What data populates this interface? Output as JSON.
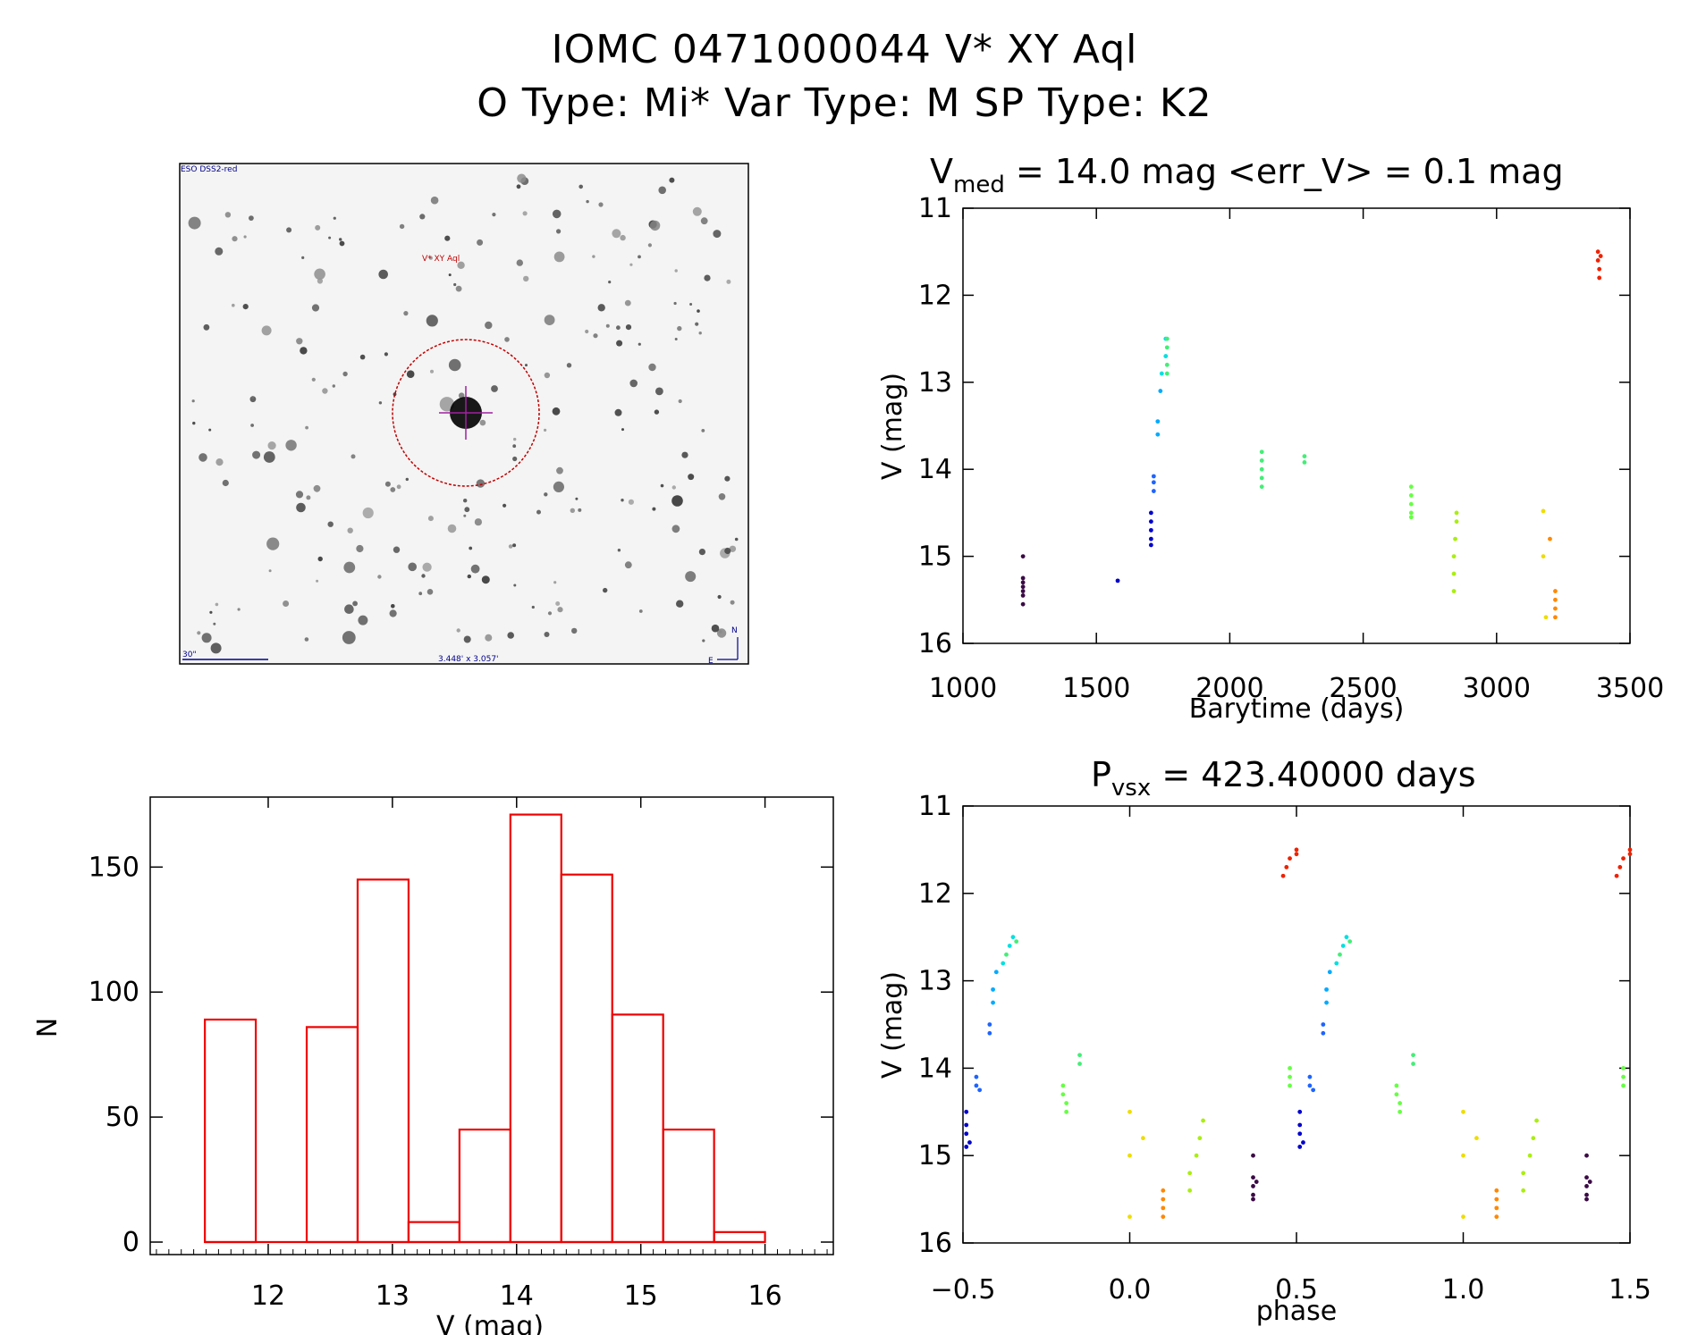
{
  "header": {
    "title_line1": "IOMC 0471000044    V* XY Aql",
    "title_line2": "O Type: Mi*  Var Type: M  SP Type: K2"
  },
  "finder_image": {
    "survey_label": "ESO DSS2-red",
    "target_label": "V* XY Aql",
    "scale_label": "30\"",
    "fov_label": "3.448' x 3.057'",
    "north_label": "N",
    "east_label": "E",
    "colors": {
      "circle": "#c00000",
      "labels": "#00008b",
      "target_label": "#c00000"
    }
  },
  "chart_data": [
    {
      "id": "lightcurve",
      "type": "scatter",
      "title_prefix": "V",
      "title_sub": "med",
      "title_rest": " = 14.0 mag <err_V> = 0.1 mag",
      "xlabel": "Barytime (days)",
      "ylabel": "V (mag)",
      "xlim": [
        1000,
        3500
      ],
      "ylim": [
        16,
        11
      ],
      "y_inverted": true,
      "xticks": [
        "1000",
        "1500",
        "2000",
        "2500",
        "3000",
        "3500"
      ],
      "yticks": [
        "11",
        "12",
        "13",
        "14",
        "15",
        "16"
      ],
      "series": [
        {
          "color": "#3b0a45",
          "points": [
            [
              1225,
              15.0
            ],
            [
              1225,
              15.25
            ],
            [
              1225,
              15.3
            ],
            [
              1225,
              15.35
            ],
            [
              1225,
              15.4
            ],
            [
              1225,
              15.45
            ],
            [
              1225,
              15.55
            ]
          ]
        },
        {
          "color": "#0000cc",
          "points": [
            [
              1580,
              15.28
            ],
            [
              1705,
              14.5
            ],
            [
              1705,
              14.6
            ],
            [
              1705,
              14.7
            ],
            [
              1705,
              14.8
            ],
            [
              1705,
              14.87
            ]
          ]
        },
        {
          "color": "#1e64ff",
          "points": [
            [
              1715,
              14.08
            ],
            [
              1715,
              14.15
            ],
            [
              1715,
              14.25
            ]
          ]
        },
        {
          "color": "#00aaff",
          "points": [
            [
              1730,
              13.45
            ],
            [
              1730,
              13.6
            ],
            [
              1740,
              13.1
            ]
          ]
        },
        {
          "color": "#00e0e0",
          "points": [
            [
              1745,
              12.9
            ],
            [
              1760,
              12.5
            ],
            [
              1760,
              12.7
            ]
          ]
        },
        {
          "color": "#44ee77",
          "points": [
            [
              1765,
              12.5
            ],
            [
              1765,
              12.6
            ],
            [
              1765,
              12.8
            ],
            [
              1765,
              12.9
            ],
            [
              2120,
              13.8
            ],
            [
              2120,
              13.9
            ],
            [
              2120,
              14.0
            ],
            [
              2120,
              14.1
            ],
            [
              2120,
              14.2
            ],
            [
              2280,
              13.85
            ],
            [
              2280,
              13.92
            ]
          ]
        },
        {
          "color": "#66ff44",
          "points": [
            [
              2680,
              14.2
            ],
            [
              2680,
              14.3
            ],
            [
              2680,
              14.4
            ],
            [
              2680,
              14.5
            ],
            [
              2680,
              14.55
            ]
          ]
        },
        {
          "color": "#aaee11",
          "points": [
            [
              2840,
              15.4
            ],
            [
              2840,
              15.2
            ],
            [
              2840,
              15.0
            ],
            [
              2845,
              14.8
            ],
            [
              2850,
              14.6
            ],
            [
              2850,
              14.5
            ]
          ]
        },
        {
          "color": "#eedd00",
          "points": [
            [
              3175,
              14.48
            ],
            [
              3175,
              15.0
            ],
            [
              3185,
              15.7
            ]
          ]
        },
        {
          "color": "#ff8800",
          "points": [
            [
              3200,
              14.8
            ],
            [
              3220,
              15.4
            ],
            [
              3220,
              15.5
            ],
            [
              3220,
              15.6
            ],
            [
              3220,
              15.7
            ]
          ]
        },
        {
          "color": "#ee2200",
          "points": [
            [
              3380,
              11.5
            ],
            [
              3380,
              11.6
            ],
            [
              3385,
              11.7
            ],
            [
              3385,
              11.8
            ],
            [
              3390,
              11.55
            ]
          ]
        }
      ]
    },
    {
      "id": "histogram",
      "type": "bar",
      "xlabel": "V (mag)",
      "ylabel": "N",
      "xlim": [
        11.05,
        16.55
      ],
      "ylim": [
        -5,
        178
      ],
      "xticks": [
        "12",
        "13",
        "14",
        "15",
        "16"
      ],
      "yticks": [
        "0",
        "50",
        "100",
        "150"
      ],
      "bin_edges": [
        11.49,
        11.9,
        12.31,
        12.72,
        13.13,
        13.54,
        13.95,
        14.36,
        14.77,
        15.18,
        15.59,
        16.0
      ],
      "values": [
        89,
        0,
        86,
        145,
        8,
        45,
        171,
        147,
        91,
        45,
        4
      ],
      "color": "#ee0000"
    },
    {
      "id": "phased",
      "type": "scatter",
      "title_prefix": "P",
      "title_sub": "vsx",
      "title_rest": " = 423.40000 days",
      "xlabel": "phase",
      "ylabel": "V (mag)",
      "xlim": [
        -0.5,
        1.5
      ],
      "ylim": [
        16,
        11
      ],
      "y_inverted": true,
      "xticks": [
        "-0.5",
        "0.0",
        "0.5",
        "1.0",
        "1.5"
      ],
      "yticks": [
        "11",
        "12",
        "13",
        "14",
        "15",
        "16"
      ],
      "series": [
        {
          "color": "#3b0a45",
          "points": [
            [
              0.37,
              15.0
            ],
            [
              0.37,
              15.25
            ],
            [
              0.37,
              15.35
            ],
            [
              0.37,
              15.45
            ],
            [
              0.37,
              15.5
            ],
            [
              0.38,
              15.3
            ]
          ]
        },
        {
          "color": "#0000cc",
          "points": [
            [
              -0.49,
              14.5
            ],
            [
              -0.49,
              14.65
            ],
            [
              -0.49,
              14.75
            ],
            [
              -0.48,
              14.85
            ],
            [
              -0.49,
              14.9
            ]
          ]
        },
        {
          "color": "#1e64ff",
          "points": [
            [
              -0.46,
              14.1
            ],
            [
              -0.46,
              14.2
            ],
            [
              -0.45,
              14.25
            ],
            [
              -0.42,
              13.5
            ],
            [
              -0.42,
              13.6
            ]
          ]
        },
        {
          "color": "#00aaff",
          "points": [
            [
              -0.41,
              13.1
            ],
            [
              -0.41,
              13.25
            ],
            [
              -0.4,
              12.9
            ]
          ]
        },
        {
          "color": "#00e0e0",
          "points": [
            [
              -0.38,
              12.8
            ],
            [
              -0.36,
              12.6
            ],
            [
              -0.35,
              12.5
            ]
          ]
        },
        {
          "color": "#44ee77",
          "points": [
            [
              -0.37,
              12.7
            ],
            [
              -0.34,
              12.55
            ],
            [
              -0.15,
              13.85
            ],
            [
              -0.15,
              13.95
            ]
          ]
        },
        {
          "color": "#66ff44",
          "points": [
            [
              -0.2,
              14.2
            ],
            [
              -0.2,
              14.3
            ],
            [
              -0.19,
              14.4
            ],
            [
              -0.19,
              14.5
            ],
            [
              0.48,
              14.0
            ],
            [
              0.48,
              14.1
            ],
            [
              0.48,
              14.2
            ]
          ]
        },
        {
          "color": "#aaee11",
          "points": [
            [
              0.18,
              15.4
            ],
            [
              0.18,
              15.2
            ],
            [
              0.2,
              15.0
            ],
            [
              0.21,
              14.8
            ],
            [
              0.22,
              14.6
            ]
          ]
        },
        {
          "color": "#eedd00",
          "points": [
            [
              0.0,
              14.5
            ],
            [
              0.0,
              15.0
            ],
            [
              0.04,
              14.8
            ],
            [
              0.0,
              15.7
            ]
          ]
        },
        {
          "color": "#ff8800",
          "points": [
            [
              0.1,
              15.4
            ],
            [
              0.1,
              15.5
            ],
            [
              0.1,
              15.6
            ],
            [
              0.1,
              15.7
            ]
          ]
        },
        {
          "color": "#ee2200",
          "points": [
            [
              0.46,
              11.8
            ],
            [
              0.47,
              11.7
            ],
            [
              0.48,
              11.6
            ],
            [
              0.5,
              11.55
            ],
            [
              0.5,
              11.5
            ]
          ]
        }
      ],
      "mirror_shift": 1.0
    }
  ]
}
